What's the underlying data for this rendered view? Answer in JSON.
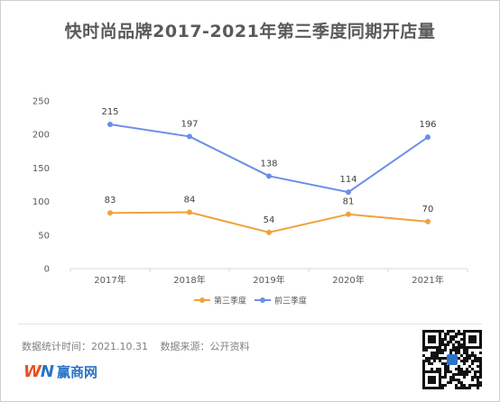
{
  "title": "快时尚品牌2017-2021年第三季度同期开店量",
  "footnote": {
    "stat_time": "数据统计时间：2021.10.31",
    "source": "数据来源：公开资料"
  },
  "logo": {
    "mark_w": "W",
    "mark_n": "N",
    "name": "赢商网"
  },
  "colors": {
    "series_q3": "#f0a23c",
    "series_q1q2": "#6a8fe6"
  },
  "chart_data": {
    "type": "line",
    "title": "快时尚品牌2017-2021年第三季度同期开店量",
    "categories": [
      "2017年",
      "2018年",
      "2019年",
      "2020年",
      "2021年"
    ],
    "series": [
      {
        "name": "第三季度",
        "values": [
          83,
          84,
          54,
          81,
          70
        ]
      },
      {
        "name": "前三季度",
        "values": [
          215,
          197,
          138,
          114,
          196
        ]
      }
    ],
    "ylim": [
      0,
      250
    ],
    "yticks": [
      0,
      50,
      100,
      150,
      200,
      250
    ],
    "grid": false,
    "legend": "bottom",
    "data_labels": true
  }
}
